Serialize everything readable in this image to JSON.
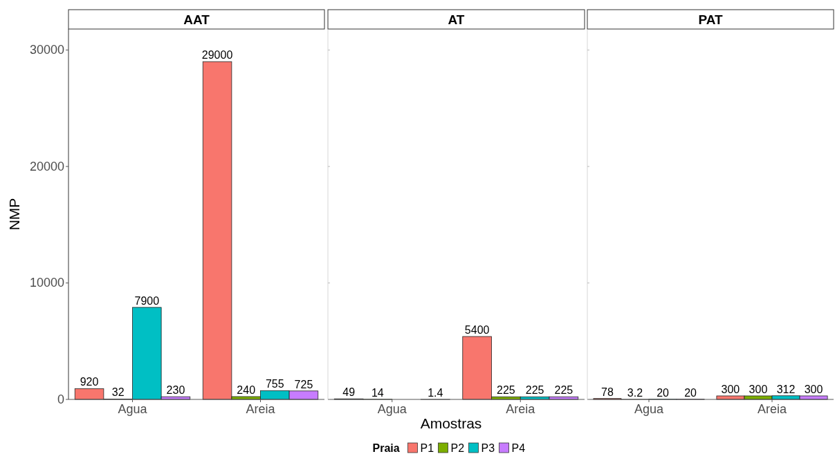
{
  "chart_data": [
    {
      "type": "bar",
      "title": "AAT",
      "ylabel": "NMP",
      "categories": [
        "Agua",
        "Areia"
      ],
      "series": [
        {
          "color": "#f8766d",
          "values": [
            920,
            29000
          ]
        },
        {
          "color": "#7cae00",
          "values": [
            32,
            240
          ]
        },
        {
          "color": "#00bfc4",
          "values": [
            7900,
            755
          ]
        },
        {
          "color": "#c77cff",
          "values": [
            230,
            725
          ]
        }
      ],
      "ylim": [
        0,
        31800
      ],
      "yticks": [
        0,
        10000,
        20000,
        30000
      ],
      "data_labels": true
    },
    {
      "type": "bar",
      "title": "AT",
      "xlabel": "Amostras",
      "legend_title": "Praia",
      "legend": "bottom",
      "categories": [
        "Agua",
        "Areia"
      ],
      "series": [
        {
          "name": "P1",
          "color": "#f8766d",
          "values": [
            49,
            5400
          ]
        },
        {
          "name": "P2",
          "color": "#7cae00",
          "values": [
            14,
            225
          ]
        },
        {
          "name": "P3",
          "color": "#00bfc4",
          "values": [
            null,
            225
          ]
        },
        {
          "name": "P4",
          "color": "#c77cff",
          "values": [
            1.4,
            225
          ]
        }
      ],
      "ylim": [
        0,
        31800
      ],
      "yticks": [
        0,
        10000,
        20000,
        30000
      ],
      "tick_labels": "x",
      "data_labels": true
    },
    {
      "type": "bar",
      "title": "PAT",
      "categories": [
        "Agua",
        "Areia"
      ],
      "series": [
        {
          "color": "#f8766d",
          "values": [
            78,
            300
          ]
        },
        {
          "color": "#7cae00",
          "values": [
            3.2,
            300
          ]
        },
        {
          "color": "#00bfc4",
          "values": [
            20,
            312
          ]
        },
        {
          "color": "#c77cff",
          "values": [
            20,
            300
          ]
        }
      ],
      "ylim": [
        0,
        31800
      ],
      "yticks": [
        0,
        10000,
        20000,
        30000
      ],
      "tick_labels": "x",
      "data_labels": true
    }
  ]
}
